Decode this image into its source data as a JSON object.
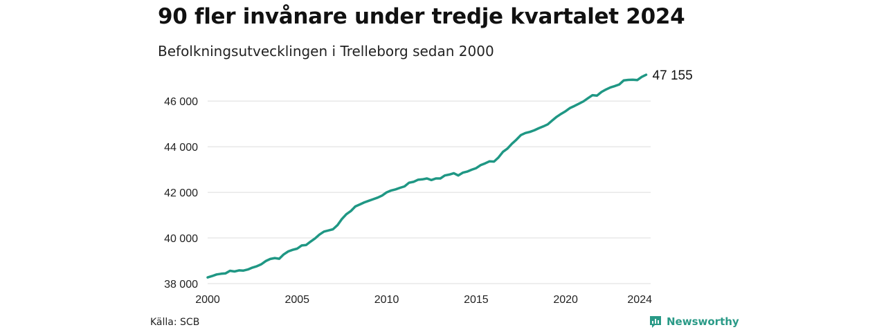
{
  "title": "90 fler invånare under tredje kvartalet 2024",
  "subtitle": "Befolkningsutvecklingen i Trelleborg sedan 2000",
  "source": "Källa: SCB",
  "brand": {
    "name": "Newsworthy",
    "logo_icon": "newsworthy-logo-icon"
  },
  "colors": {
    "line": "#1f9784",
    "grid": "#dcdcdc",
    "brand": "#2a9a87"
  },
  "chart_data": {
    "type": "line",
    "title": "90 fler invånare under tredje kvartalet 2024",
    "subtitle": "Befolkningsutvecklingen i Trelleborg sedan 2000",
    "xlabel": "",
    "ylabel": "",
    "xlim": [
      2000,
      2024.75
    ],
    "ylim": [
      38000,
      47400
    ],
    "x_ticks": [
      2000,
      2005,
      2010,
      2015,
      2020,
      2024
    ],
    "x_tick_labels": [
      "2000",
      "2005",
      "2010",
      "2015",
      "2020",
      "2024"
    ],
    "y_ticks": [
      38000,
      40000,
      42000,
      44000,
      46000
    ],
    "y_tick_labels": [
      "38 000",
      "40 000",
      "42 000",
      "44 000",
      "46 000"
    ],
    "grid": "horizontal",
    "legend": "none",
    "end_label": "47 155",
    "series": [
      {
        "x": [
          2000,
          2000.25,
          2000.5,
          2000.75,
          2001,
          2001.25,
          2001.5,
          2001.75,
          2002,
          2002.25,
          2002.5,
          2002.75,
          2003,
          2003.25,
          2003.5,
          2003.75,
          2004,
          2004.25,
          2004.5,
          2004.75,
          2005,
          2005.25,
          2005.5,
          2005.75,
          2006,
          2006.25,
          2006.5,
          2006.75,
          2007,
          2007.25,
          2007.5,
          2007.75,
          2008,
          2008.25,
          2008.5,
          2008.75,
          2009,
          2009.25,
          2009.5,
          2009.75,
          2010,
          2010.25,
          2010.5,
          2010.75,
          2011,
          2011.25,
          2011.5,
          2011.75,
          2012,
          2012.25,
          2012.5,
          2012.75,
          2013,
          2013.25,
          2013.5,
          2013.75,
          2014,
          2014.25,
          2014.5,
          2014.75,
          2015,
          2015.25,
          2015.5,
          2015.75,
          2016,
          2016.25,
          2016.5,
          2016.75,
          2017,
          2017.25,
          2017.5,
          2017.75,
          2018,
          2018.25,
          2018.5,
          2018.75,
          2019,
          2019.25,
          2019.5,
          2019.75,
          2020,
          2020.25,
          2020.5,
          2020.75,
          2021,
          2021.25,
          2021.5,
          2021.75,
          2022,
          2022.25,
          2022.5,
          2022.75,
          2023,
          2023.25,
          2023.5,
          2023.75,
          2024,
          2024.25,
          2024.5
        ],
        "values": [
          38270,
          38330,
          38400,
          38430,
          38450,
          38560,
          38530,
          38580,
          38570,
          38620,
          38700,
          38760,
          38850,
          38990,
          39080,
          39120,
          39090,
          39280,
          39410,
          39480,
          39530,
          39670,
          39690,
          39840,
          39980,
          40150,
          40280,
          40330,
          40380,
          40560,
          40830,
          41040,
          41180,
          41380,
          41470,
          41560,
          41630,
          41700,
          41770,
          41860,
          42000,
          42080,
          42130,
          42200,
          42260,
          42420,
          42460,
          42550,
          42570,
          42610,
          42540,
          42610,
          42610,
          42740,
          42780,
          42840,
          42740,
          42860,
          42910,
          42990,
          43060,
          43190,
          43270,
          43360,
          43350,
          43530,
          43780,
          43920,
          44130,
          44310,
          44510,
          44600,
          44650,
          44720,
          44810,
          44890,
          44980,
          45150,
          45310,
          45440,
          45560,
          45700,
          45790,
          45890,
          45990,
          46130,
          46260,
          46240,
          46400,
          46510,
          46600,
          46660,
          46730,
          46910,
          46930,
          46940,
          46920,
          47060,
          47155
        ]
      }
    ]
  }
}
